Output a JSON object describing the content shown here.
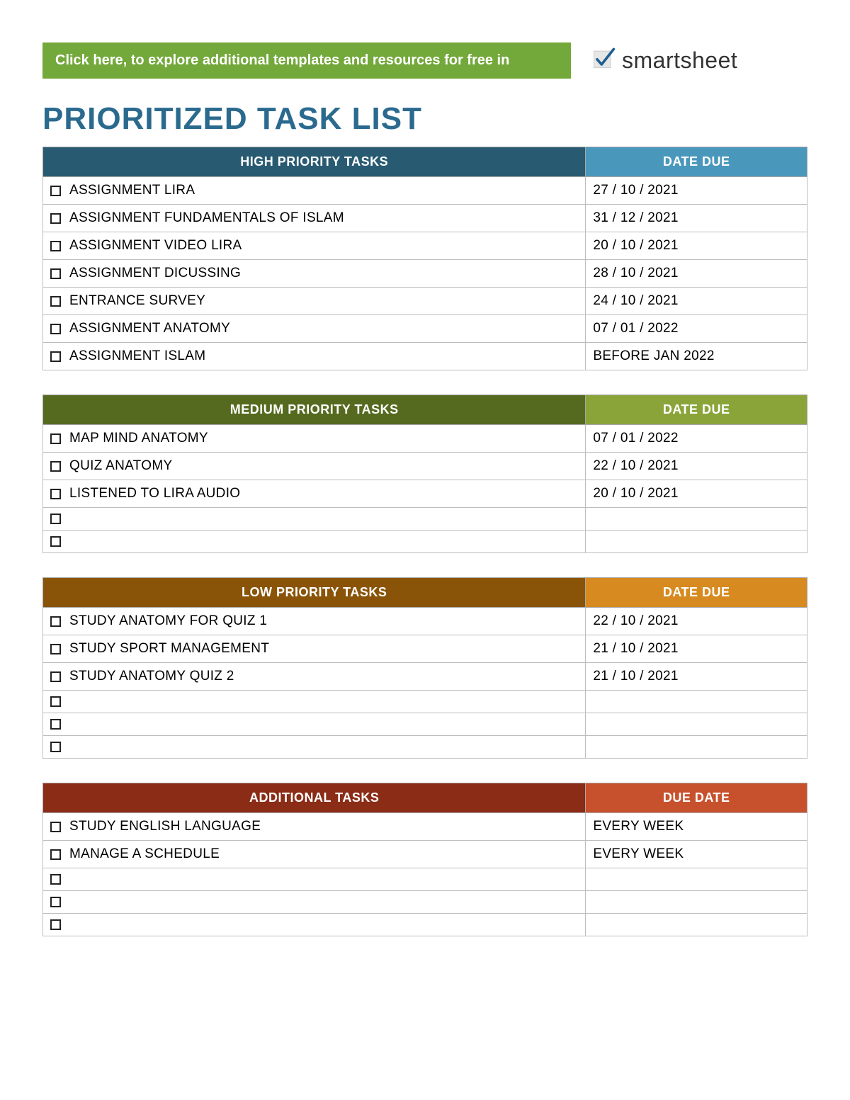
{
  "banner": {
    "text": "Click here, to explore additional templates and resources for free in"
  },
  "brand": {
    "name": "smartsheet"
  },
  "page_title": "PRIORITIZED TASK LIST",
  "colors": {
    "banner_bg": "#73a83a",
    "title_color": "#2b6a8f",
    "grid_border": "#bdbdbd",
    "high": {
      "task_header_bg": "#285a72",
      "date_header_bg": "#4a97bc"
    },
    "medium": {
      "task_header_bg": "#566a1f",
      "date_header_bg": "#8aa43a"
    },
    "low": {
      "task_header_bg": "#8a5408",
      "date_header_bg": "#d68a1f"
    },
    "extra": {
      "task_header_bg": "#8a2c16",
      "date_header_bg": "#c8512d"
    }
  },
  "sections": {
    "high": {
      "task_header": "HIGH PRIORITY TASKS",
      "date_header": "DATE DUE",
      "rows": [
        {
          "task": "ASSIGNMENT LIRA",
          "due": "27 / 10 / 2021"
        },
        {
          "task": "ASSIGNMENT FUNDAMENTALS OF ISLAM",
          "due": "31 / 12 / 2021"
        },
        {
          "task": "ASSIGNMENT VIDEO LIRA",
          "due": "20 / 10 / 2021"
        },
        {
          "task": "ASSIGNMENT DICUSSING",
          "due": "28 / 10 / 2021"
        },
        {
          "task": "ENTRANCE SURVEY",
          "due": "24 / 10 / 2021"
        },
        {
          "task": "ASSIGNMENT ANATOMY",
          "due": "07 / 01 / 2022"
        },
        {
          "task": "ASSIGNMENT ISLAM",
          "due": "BEFORE JAN 2022"
        }
      ]
    },
    "medium": {
      "task_header": "MEDIUM PRIORITY TASKS",
      "date_header": "DATE DUE",
      "rows": [
        {
          "task": "MAP MIND ANATOMY",
          "due": "07 / 01 / 2022"
        },
        {
          "task": "QUIZ ANATOMY",
          "due": "22 / 10 / 2021"
        },
        {
          "task": "LISTENED TO LIRA AUDIO",
          "due": "20 / 10 / 2021"
        },
        {
          "task": "",
          "due": ""
        },
        {
          "task": "",
          "due": ""
        }
      ]
    },
    "low": {
      "task_header": "LOW PRIORITY TASKS",
      "date_header": "DATE DUE",
      "rows": [
        {
          "task": "STUDY ANATOMY FOR QUIZ 1",
          "due": "22 / 10 / 2021"
        },
        {
          "task": "STUDY SPORT MANAGEMENT",
          "due": "21 / 10 / 2021"
        },
        {
          "task": "STUDY ANATOMY QUIZ 2",
          "due": "21 / 10 / 2021"
        },
        {
          "task": "",
          "due": ""
        },
        {
          "task": "",
          "due": ""
        },
        {
          "task": "",
          "due": ""
        }
      ]
    },
    "extra": {
      "task_header": "ADDITIONAL TASKS",
      "date_header": "DUE DATE",
      "rows": [
        {
          "task": "STUDY ENGLISH LANGUAGE",
          "due": "EVERY WEEK"
        },
        {
          "task": "MANAGE A SCHEDULE",
          "due": "EVERY WEEK"
        },
        {
          "task": "",
          "due": ""
        },
        {
          "task": "",
          "due": ""
        },
        {
          "task": "",
          "due": ""
        }
      ]
    }
  }
}
